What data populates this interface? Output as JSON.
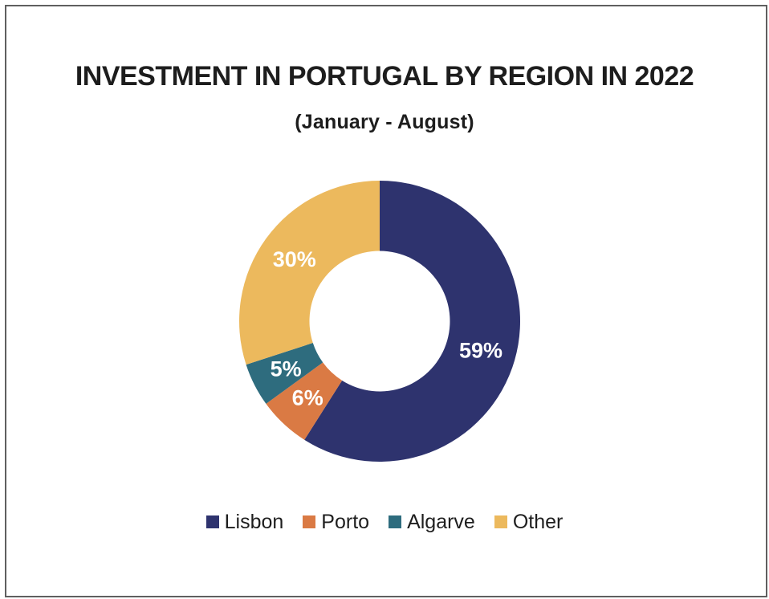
{
  "page": {
    "background_color": "#ffffff",
    "frame_border_color": "#5f5f5f"
  },
  "chart_data": {
    "type": "pie",
    "variant": "donut",
    "title": "INVESTMENT IN PORTUGAL BY REGION IN 2022",
    "subtitle": "(January - August)",
    "categories": [
      "Lisbon",
      "Porto",
      "Algarve",
      "Other"
    ],
    "values": [
      59,
      6,
      5,
      30
    ],
    "unit": "%",
    "slice_labels": [
      "59%",
      "6%",
      "5%",
      "30%"
    ],
    "colors": [
      "#2e336e",
      "#da7a44",
      "#2e6c7e",
      "#ecb95d"
    ],
    "slice_label_color": "#ffffff",
    "start_angle_deg": 0,
    "clockwise": true,
    "inner_radius_ratio": 0.5,
    "legend_position": "bottom",
    "title_color": "#1d1d1d",
    "legend_text_color": "#1e1e1e"
  }
}
